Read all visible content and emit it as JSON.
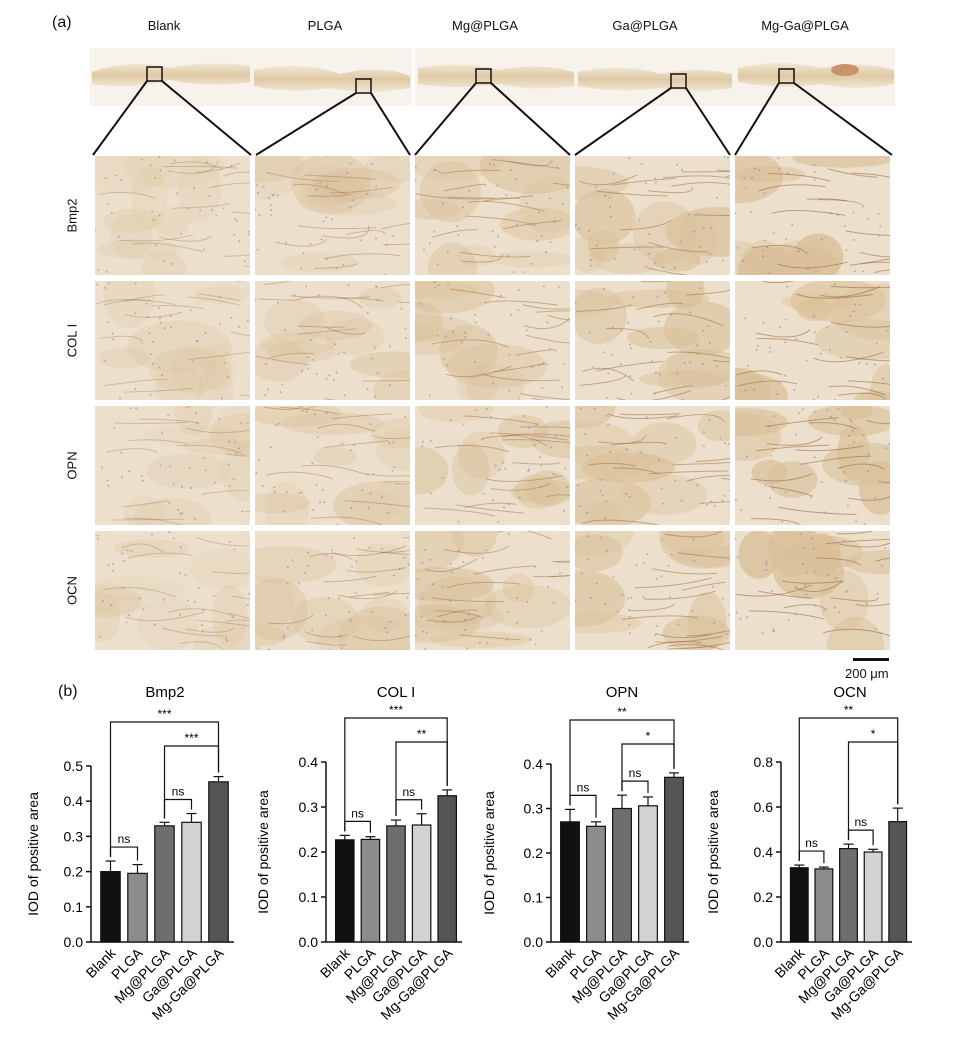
{
  "figure": {
    "label_a": "(a)",
    "label_b": "(b)",
    "columns": [
      "Blank",
      "PLGA",
      "Mg@PLGA",
      "Ga@PLGA",
      "Mg-Ga@PLGA"
    ],
    "rows": [
      "Bmp2",
      "COL I",
      "OPN",
      "OCN"
    ],
    "scale_bar": "200 μm"
  },
  "colors": {
    "blank": "#111111",
    "plga": "#8c8c8c",
    "mg": "#6e6e6e",
    "ga": "#d2d2d2",
    "mgga": "#555555",
    "tissue_light": "#ece0cc",
    "tissue_mid": "#d9bf98",
    "tissue_dark": "#9a6a3c"
  },
  "chart_data": [
    {
      "type": "bar",
      "title": "Bmp2",
      "ylabel": "IOD of positive area",
      "categories": [
        "Blank",
        "PLGA",
        "Mg@PLGA",
        "Ga@PLGA",
        "Mg-Ga@PLGA"
      ],
      "values": [
        0.2,
        0.195,
        0.33,
        0.34,
        0.455
      ],
      "errors": [
        0.03,
        0.025,
        0.01,
        0.025,
        0.015
      ],
      "ylim": [
        0,
        0.5
      ],
      "yticks": [
        "0.0",
        "0.1",
        "0.2",
        "0.3",
        "0.4",
        "0.5"
      ],
      "brackets": [
        {
          "from": 0,
          "to": 1,
          "label": "ns"
        },
        {
          "from": 2,
          "to": 3,
          "label": "ns"
        },
        {
          "from": 2,
          "to": 4,
          "label": "***"
        },
        {
          "from": 0,
          "to": 4,
          "label": "***"
        }
      ]
    },
    {
      "type": "bar",
      "title": "COL I",
      "ylabel": "IOD of positive area",
      "categories": [
        "Blank",
        "PLGA",
        "Mg@PLGA",
        "Ga@PLGA",
        "Mg-Ga@PLGA"
      ],
      "values": [
        0.227,
        0.228,
        0.258,
        0.26,
        0.325
      ],
      "errors": [
        0.01,
        0.006,
        0.013,
        0.025,
        0.013
      ],
      "ylim": [
        0,
        0.4
      ],
      "yticks": [
        "0.0",
        "0.1",
        "0.2",
        "0.3",
        "0.4"
      ],
      "brackets": [
        {
          "from": 0,
          "to": 1,
          "label": "ns"
        },
        {
          "from": 2,
          "to": 3,
          "label": "ns"
        },
        {
          "from": 2,
          "to": 4,
          "label": "**"
        },
        {
          "from": 0,
          "to": 4,
          "label": "***"
        }
      ]
    },
    {
      "type": "bar",
      "title": "OPN",
      "ylabel": "IOD of positive area",
      "categories": [
        "Blank",
        "PLGA",
        "Mg@PLGA",
        "Ga@PLGA",
        "Mg-Ga@PLGA"
      ],
      "values": [
        0.27,
        0.26,
        0.3,
        0.306,
        0.37
      ],
      "errors": [
        0.028,
        0.01,
        0.03,
        0.02,
        0.01
      ],
      "ylim": [
        0,
        0.4
      ],
      "yticks": [
        "0.0",
        "0.1",
        "0.2",
        "0.3",
        "0.4"
      ],
      "brackets": [
        {
          "from": 0,
          "to": 1,
          "label": "ns"
        },
        {
          "from": 2,
          "to": 3,
          "label": "ns"
        },
        {
          "from": 2,
          "to": 4,
          "label": "*"
        },
        {
          "from": 0,
          "to": 4,
          "label": "**"
        }
      ]
    },
    {
      "type": "bar",
      "title": "OCN",
      "ylabel": "IOD of positive area",
      "categories": [
        "Blank",
        "PLGA",
        "Mg@PLGA",
        "Ga@PLGA",
        "Mg-Ga@PLGA"
      ],
      "values": [
        0.33,
        0.325,
        0.415,
        0.4,
        0.535
      ],
      "errors": [
        0.012,
        0.008,
        0.02,
        0.012,
        0.06
      ],
      "ylim": [
        0,
        0.8
      ],
      "yticks": [
        "0.0",
        "0.2",
        "0.4",
        "0.6",
        "0.8"
      ],
      "brackets": [
        {
          "from": 0,
          "to": 1,
          "label": "ns"
        },
        {
          "from": 2,
          "to": 3,
          "label": "ns"
        },
        {
          "from": 2,
          "to": 4,
          "label": "*"
        },
        {
          "from": 0,
          "to": 4,
          "label": "**"
        }
      ]
    }
  ]
}
